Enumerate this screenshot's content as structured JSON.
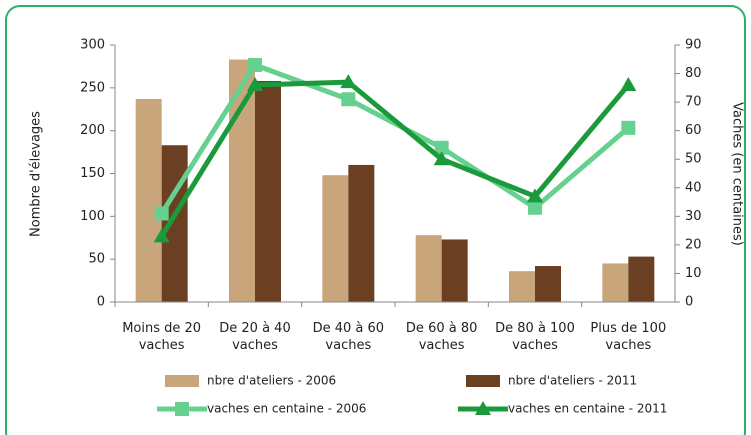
{
  "chart_data": {
    "type": "bar-line",
    "categories": [
      "Moins de 20 vaches",
      "De 20 à 40 vaches",
      "De 40 à 60 vaches",
      "De 60 à 80 vaches",
      "De 80 à 100 vaches",
      "Plus de 100 vaches"
    ],
    "y_label": "Nombre d'élevages",
    "y2_label": "Vaches  (en centaines)",
    "ylim": [
      0,
      300
    ],
    "yticks": [
      0,
      50,
      100,
      150,
      200,
      250,
      300
    ],
    "y2lim": [
      0,
      90
    ],
    "y2ticks": [
      0,
      10,
      20,
      30,
      40,
      50,
      60,
      70,
      80,
      90
    ],
    "series": [
      {
        "name": "nbre d'ateliers - 2006",
        "kind": "bar",
        "color": "#c9a57b",
        "values": [
          237,
          283,
          148,
          78,
          36,
          45
        ]
      },
      {
        "name": "nbre d'ateliers - 2011",
        "kind": "bar",
        "color": "#6b3f22",
        "values": [
          183,
          258,
          160,
          73,
          42,
          53
        ]
      },
      {
        "name": "vaches en centaine - 2006",
        "kind": "line",
        "marker": "square",
        "axis": "y2",
        "color": "#66d08e",
        "values": [
          31,
          83,
          71,
          54,
          33,
          61
        ]
      },
      {
        "name": "vaches en centaine - 2011",
        "kind": "line",
        "marker": "triangle",
        "axis": "y2",
        "color": "#1b9a3c",
        "values": [
          23,
          76,
          77,
          50,
          37,
          76
        ]
      }
    ]
  }
}
